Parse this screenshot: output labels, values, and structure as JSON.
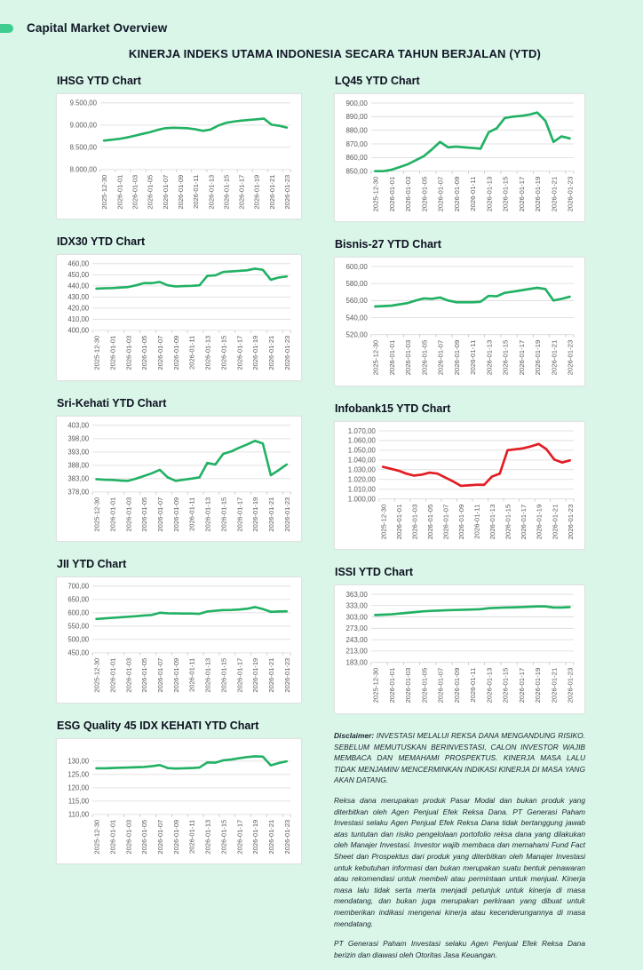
{
  "header": {
    "label": "Capital Market Overview"
  },
  "main_title": "KINERJA INDEKS UTAMA INDONESIA SECARA TAHUN BERJALAN (YTD)",
  "colors": {
    "background": "#d9f6e8",
    "accent_pill": "#3ecd8e",
    "line_green": "#22b164",
    "line_red": "#e11d23",
    "grid": "#d9d9d9",
    "axis_text": "#595959",
    "card_border": "#e2e2e2"
  },
  "x_labels": [
    "2025-12-30",
    "2026-01-01",
    "2026-01-03",
    "2026-01-05",
    "2026-01-07",
    "2026-01-09",
    "2026-01-11",
    "2026-01-13",
    "2026-01-15",
    "2026-01-17",
    "2026-01-19",
    "2026-01-21",
    "2026-01-23"
  ],
  "chart_data": [
    {
      "type": "line",
      "title": "IHSG YTD Chart",
      "line_color": "#22b164",
      "x_labels": [
        "2025-12-30",
        "2026-01-01",
        "2026-01-03",
        "2026-01-05",
        "2026-01-07",
        "2026-01-09",
        "2026-01-11",
        "2026-01-13",
        "2026-01-15",
        "2026-01-17",
        "2026-01-19",
        "2026-01-21",
        "2026-01-23"
      ],
      "y_ticks": [
        "9.500,00",
        "9.000,00",
        "8.500,00",
        "8.000,00"
      ],
      "ylim": [
        8000,
        9500
      ],
      "values": [
        8650,
        8670,
        8690,
        8720,
        8760,
        8800,
        8840,
        8890,
        8930,
        8940,
        8935,
        8930,
        8905,
        8870,
        8900,
        8990,
        9050,
        9080,
        9100,
        9115,
        9130,
        9145,
        9010,
        8985,
        8945
      ]
    },
    {
      "type": "line",
      "title": "LQ45 YTD Chart",
      "line_color": "#22b164",
      "x_labels": [
        "2025-12-30",
        "2026-01-01",
        "2026-01-03",
        "2026-01-05",
        "2026-01-07",
        "2026-01-09",
        "2026-01-11",
        "2026-01-13",
        "2026-01-15",
        "2026-01-17",
        "2026-01-19",
        "2026-01-21",
        "2026-01-23"
      ],
      "y_ticks": [
        "900,00",
        "890,00",
        "880,00",
        "870,00",
        "860,00",
        "850,00"
      ],
      "ylim": [
        850,
        900
      ],
      "values": [
        850,
        850,
        851,
        853,
        855,
        858,
        861,
        866,
        871.5,
        867.5,
        868,
        867.5,
        867,
        866.5,
        878.5,
        881.5,
        889,
        890,
        890.5,
        891.5,
        893,
        887,
        871.5,
        875.5,
        874
      ]
    },
    {
      "type": "line",
      "title": "IDX30 YTD Chart",
      "line_color": "#22b164",
      "x_labels": [
        "2025-12-30",
        "2026-01-01",
        "2026-01-03",
        "2026-01-05",
        "2026-01-07",
        "2026-01-09",
        "2026-01-11",
        "2026-01-13",
        "2026-01-15",
        "2026-01-17",
        "2026-01-19",
        "2026-01-21",
        "2026-01-23"
      ],
      "y_ticks": [
        "460,00",
        "450,00",
        "440,00",
        "430,00",
        "420,00",
        "410,00",
        "400,00"
      ],
      "ylim": [
        400,
        460
      ],
      "values": [
        437.5,
        437.8,
        438,
        438.5,
        439,
        440.5,
        442.5,
        442.5,
        443.5,
        440.5,
        439.5,
        439.8,
        440,
        440.5,
        449,
        449.5,
        452.5,
        453,
        453.5,
        454,
        455.5,
        454.5,
        445.5,
        447.5,
        448.5
      ]
    },
    {
      "type": "line",
      "title": "Bisnis-27 YTD Chart",
      "line_color": "#22b164",
      "x_labels": [
        "2025-12-30",
        "2026-01-01",
        "2026-01-03",
        "2026-01-05",
        "2026-01-07",
        "2026-01-09",
        "2026-01-11",
        "2026-01-13",
        "2026-01-15",
        "2026-01-17",
        "2026-01-19",
        "2026-01-21",
        "2026-01-23"
      ],
      "y_ticks": [
        "600,00",
        "580,00",
        "560,00",
        "540,00",
        "520,00"
      ],
      "ylim": [
        520,
        600
      ],
      "values": [
        553,
        553.5,
        554,
        555.5,
        557,
        560,
        562.5,
        562,
        563.5,
        560,
        558,
        558,
        558,
        558.5,
        565.5,
        565,
        569,
        570.5,
        572,
        573.5,
        575,
        573.5,
        560,
        562,
        564.5
      ]
    },
    {
      "type": "line",
      "title": "Sri-Kehati YTD Chart",
      "line_color": "#22b164",
      "x_labels": [
        "2025-12-30",
        "2026-01-01",
        "2026-01-03",
        "2026-01-05",
        "2026-01-07",
        "2026-01-09",
        "2026-01-11",
        "2026-01-13",
        "2026-01-15",
        "2026-01-17",
        "2026-01-19",
        "2026-01-21",
        "2026-01-23"
      ],
      "y_ticks": [
        "403,00",
        "398,00",
        "393,00",
        "388,00",
        "383,00",
        "378,00"
      ],
      "ylim": [
        378,
        403
      ],
      "values": [
        382.8,
        382.6,
        382.5,
        382.3,
        382.2,
        383,
        384,
        385,
        386.3,
        383.5,
        382.2,
        382.6,
        383,
        383.5,
        388.9,
        388.3,
        392.3,
        393.2,
        394.6,
        395.8,
        397.2,
        396.2,
        384.3,
        386.2,
        388.3
      ]
    },
    {
      "type": "line",
      "title": "Infobank15 YTD Chart",
      "line_color": "#e11d23",
      "x_labels": [
        "2025-12-30",
        "2026-01-01",
        "2026-01-03",
        "2026-01-05",
        "2026-01-07",
        "2026-01-09",
        "2026-01-11",
        "2026-01-13",
        "2026-01-15",
        "2026-01-17",
        "2026-01-19",
        "2026-01-21",
        "2026-01-23"
      ],
      "y_ticks": [
        "1.070,00",
        "1.060,00",
        "1.050,00",
        "1.040,00",
        "1.030,00",
        "1.020,00",
        "1.010,00",
        "1.000,00"
      ],
      "ylim": [
        1000,
        1070
      ],
      "values": [
        1033,
        1031,
        1029,
        1026,
        1024,
        1025,
        1027,
        1026,
        1022,
        1018,
        1013.5,
        1014,
        1014.5,
        1014.5,
        1023,
        1026,
        1050,
        1051,
        1052,
        1054,
        1056.5,
        1051,
        1040.5,
        1037.5,
        1039.5
      ]
    },
    {
      "type": "line",
      "title": "JII YTD Chart",
      "line_color": "#22b164",
      "x_labels": [
        "2025-12-30",
        "2026-01-01",
        "2026-01-03",
        "2026-01-05",
        "2026-01-07",
        "2026-01-09",
        "2026-01-11",
        "2026-01-13",
        "2026-01-15",
        "2026-01-17",
        "2026-01-19",
        "2026-01-21",
        "2026-01-23"
      ],
      "y_ticks": [
        "700,00",
        "650,00",
        "600,00",
        "550,00",
        "500,00",
        "450,00"
      ],
      "ylim": [
        450,
        700
      ],
      "values": [
        577,
        579,
        581,
        583,
        585,
        587,
        589.5,
        592,
        600,
        598,
        597.5,
        597,
        597,
        596,
        605,
        607.5,
        610,
        610.5,
        612,
        615,
        621.5,
        614,
        603.5,
        605,
        605.5
      ]
    },
    {
      "type": "line",
      "title": "ISSI YTD Chart",
      "line_color": "#22b164",
      "x_labels": [
        "2025-12-30",
        "2026-01-01",
        "2026-01-03",
        "2026-01-05",
        "2026-01-07",
        "2026-01-09",
        "2026-01-11",
        "2026-01-13",
        "2026-01-15",
        "2026-01-17",
        "2026-01-19",
        "2026-01-21",
        "2026-01-23"
      ],
      "y_ticks": [
        "363,00",
        "333,00",
        "303,00",
        "273,00",
        "243,00",
        "213,00",
        "183,00"
      ],
      "ylim": [
        183,
        363
      ],
      "values": [
        308,
        309,
        310,
        312,
        314,
        316,
        318,
        319,
        320,
        321,
        321.5,
        322,
        322.5,
        323.5,
        326,
        327,
        328,
        328.5,
        329,
        330,
        331,
        331,
        328,
        328,
        329
      ]
    },
    {
      "type": "line",
      "title": "ESG Quality 45 IDX KEHATI YTD Chart",
      "line_color": "#22b164",
      "x_labels": [
        "2025-12-30",
        "2026-01-01",
        "2026-01-03",
        "2026-01-05",
        "2026-01-07",
        "2026-01-09",
        "2026-01-11",
        "2026-01-13",
        "2026-01-15",
        "2026-01-17",
        "2026-01-19",
        "2026-01-21",
        "2026-01-23"
      ],
      "y_ticks": [
        "130,00",
        "125,00",
        "120,00",
        "115,00",
        "110,00"
      ],
      "ylim": [
        110,
        135
      ],
      "values": [
        127.3,
        127.3,
        127.4,
        127.5,
        127.6,
        127.7,
        127.8,
        128.1,
        128.5,
        127.4,
        127.2,
        127.3,
        127.4,
        127.6,
        129.5,
        129.4,
        130.3,
        130.6,
        131.1,
        131.5,
        131.8,
        131.7,
        128.4,
        129.3,
        129.9
      ]
    }
  ],
  "disclaimer": {
    "label": "Disclaimer:",
    "p1": "INVESTASI MELALUI REKSA DANA MENGANDUNG RISIKO. SEBELUM MEMUTUSKAN BERINVESTASI, CALON INVESTOR WAJIB MEMBACA DAN MEMAHAMI PROSPEKTUS. KINERJA MASA LALU TIDAK MENJAMIN/ MENCERMINKAN INDIKASI KINERJA DI MASA YANG AKAN DATANG.",
    "p2": "Reksa dana merupakan produk Pasar Modal dan bukan produk yang diterbitkan oleh Agen Penjual Efek Reksa Dana. PT Generasi Paham Investasi selaku Agen Penjual Efek Reksa Dana tidak bertanggung jawab atas tuntutan dan risiko pengelolaan portofolio reksa dana yang dilakukan oleh Manajer Investasi. Investor wajib membaca dan memahami Fund Fact Sheet dan Prospektus dari produk yang diterbitkan oleh Manajer Investasi untuk kebutuhan informasi dan bukan merupakan suatu bentuk penawaran atau rekomendasi untuk membeli atau permintaan untuk menjual. Kinerja masa lalu tidak serta merta menjadi petunjuk untuk kinerja di masa mendatang, dan bukan juga merupakan perkiraan yang dibuat untuk memberikan indikasi mengenai kinerja atau kecenderungannya di masa mendatang.",
    "p3": "PT Generasi Paham Investasi selaku Agen Penjual Efek Reksa Dana berizin dan diawasi oleh Otoritas Jasa Keuangan."
  }
}
